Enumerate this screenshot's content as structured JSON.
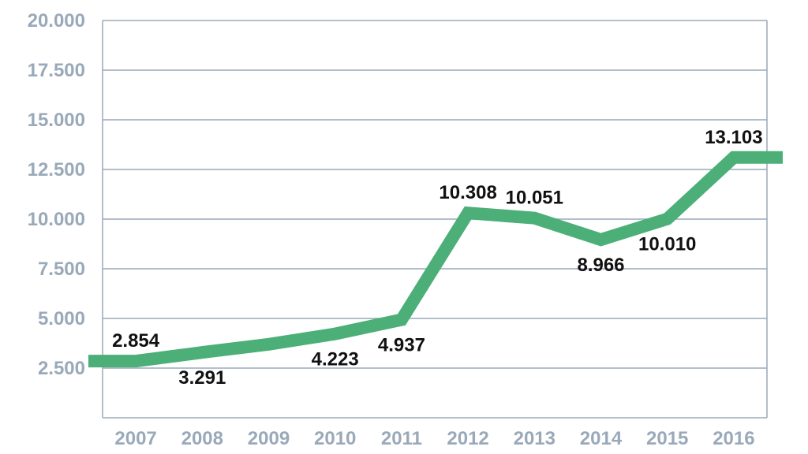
{
  "chart_data": {
    "type": "line",
    "title": "",
    "xlabel": "",
    "ylabel": "",
    "categories": [
      "2007",
      "2008",
      "2009",
      "2010",
      "2011",
      "2012",
      "2013",
      "2014",
      "2015",
      "2016"
    ],
    "series": [
      {
        "values": [
          2854,
          3291,
          3700,
          4223,
          4937,
          10308,
          10051,
          8966,
          10010,
          13103
        ],
        "labels": [
          "2.854",
          "3.291",
          null,
          "4.223",
          "4.937",
          "10.308",
          "10.051",
          "8.966",
          "10.010",
          "13.103"
        ],
        "color": "#4caf78"
      }
    ],
    "y_ticks": [
      {
        "value": 2500,
        "label": "2.500"
      },
      {
        "value": 5000,
        "label": "5.000"
      },
      {
        "value": 7500,
        "label": "7.500"
      },
      {
        "value": 10000,
        "label": "10.000"
      },
      {
        "value": 12500,
        "label": "12.500"
      },
      {
        "value": 15000,
        "label": "15.000"
      },
      {
        "value": 17500,
        "label": "17.500"
      },
      {
        "value": 20000,
        "label": "20.000"
      }
    ],
    "ylim": [
      0,
      20000
    ],
    "grid": "horizontal",
    "legend": "none",
    "colors": {
      "line": "#4caf78",
      "grid": "#9aa9b9",
      "tick_text": "#9aa9b9",
      "label_text": "#111111"
    }
  }
}
